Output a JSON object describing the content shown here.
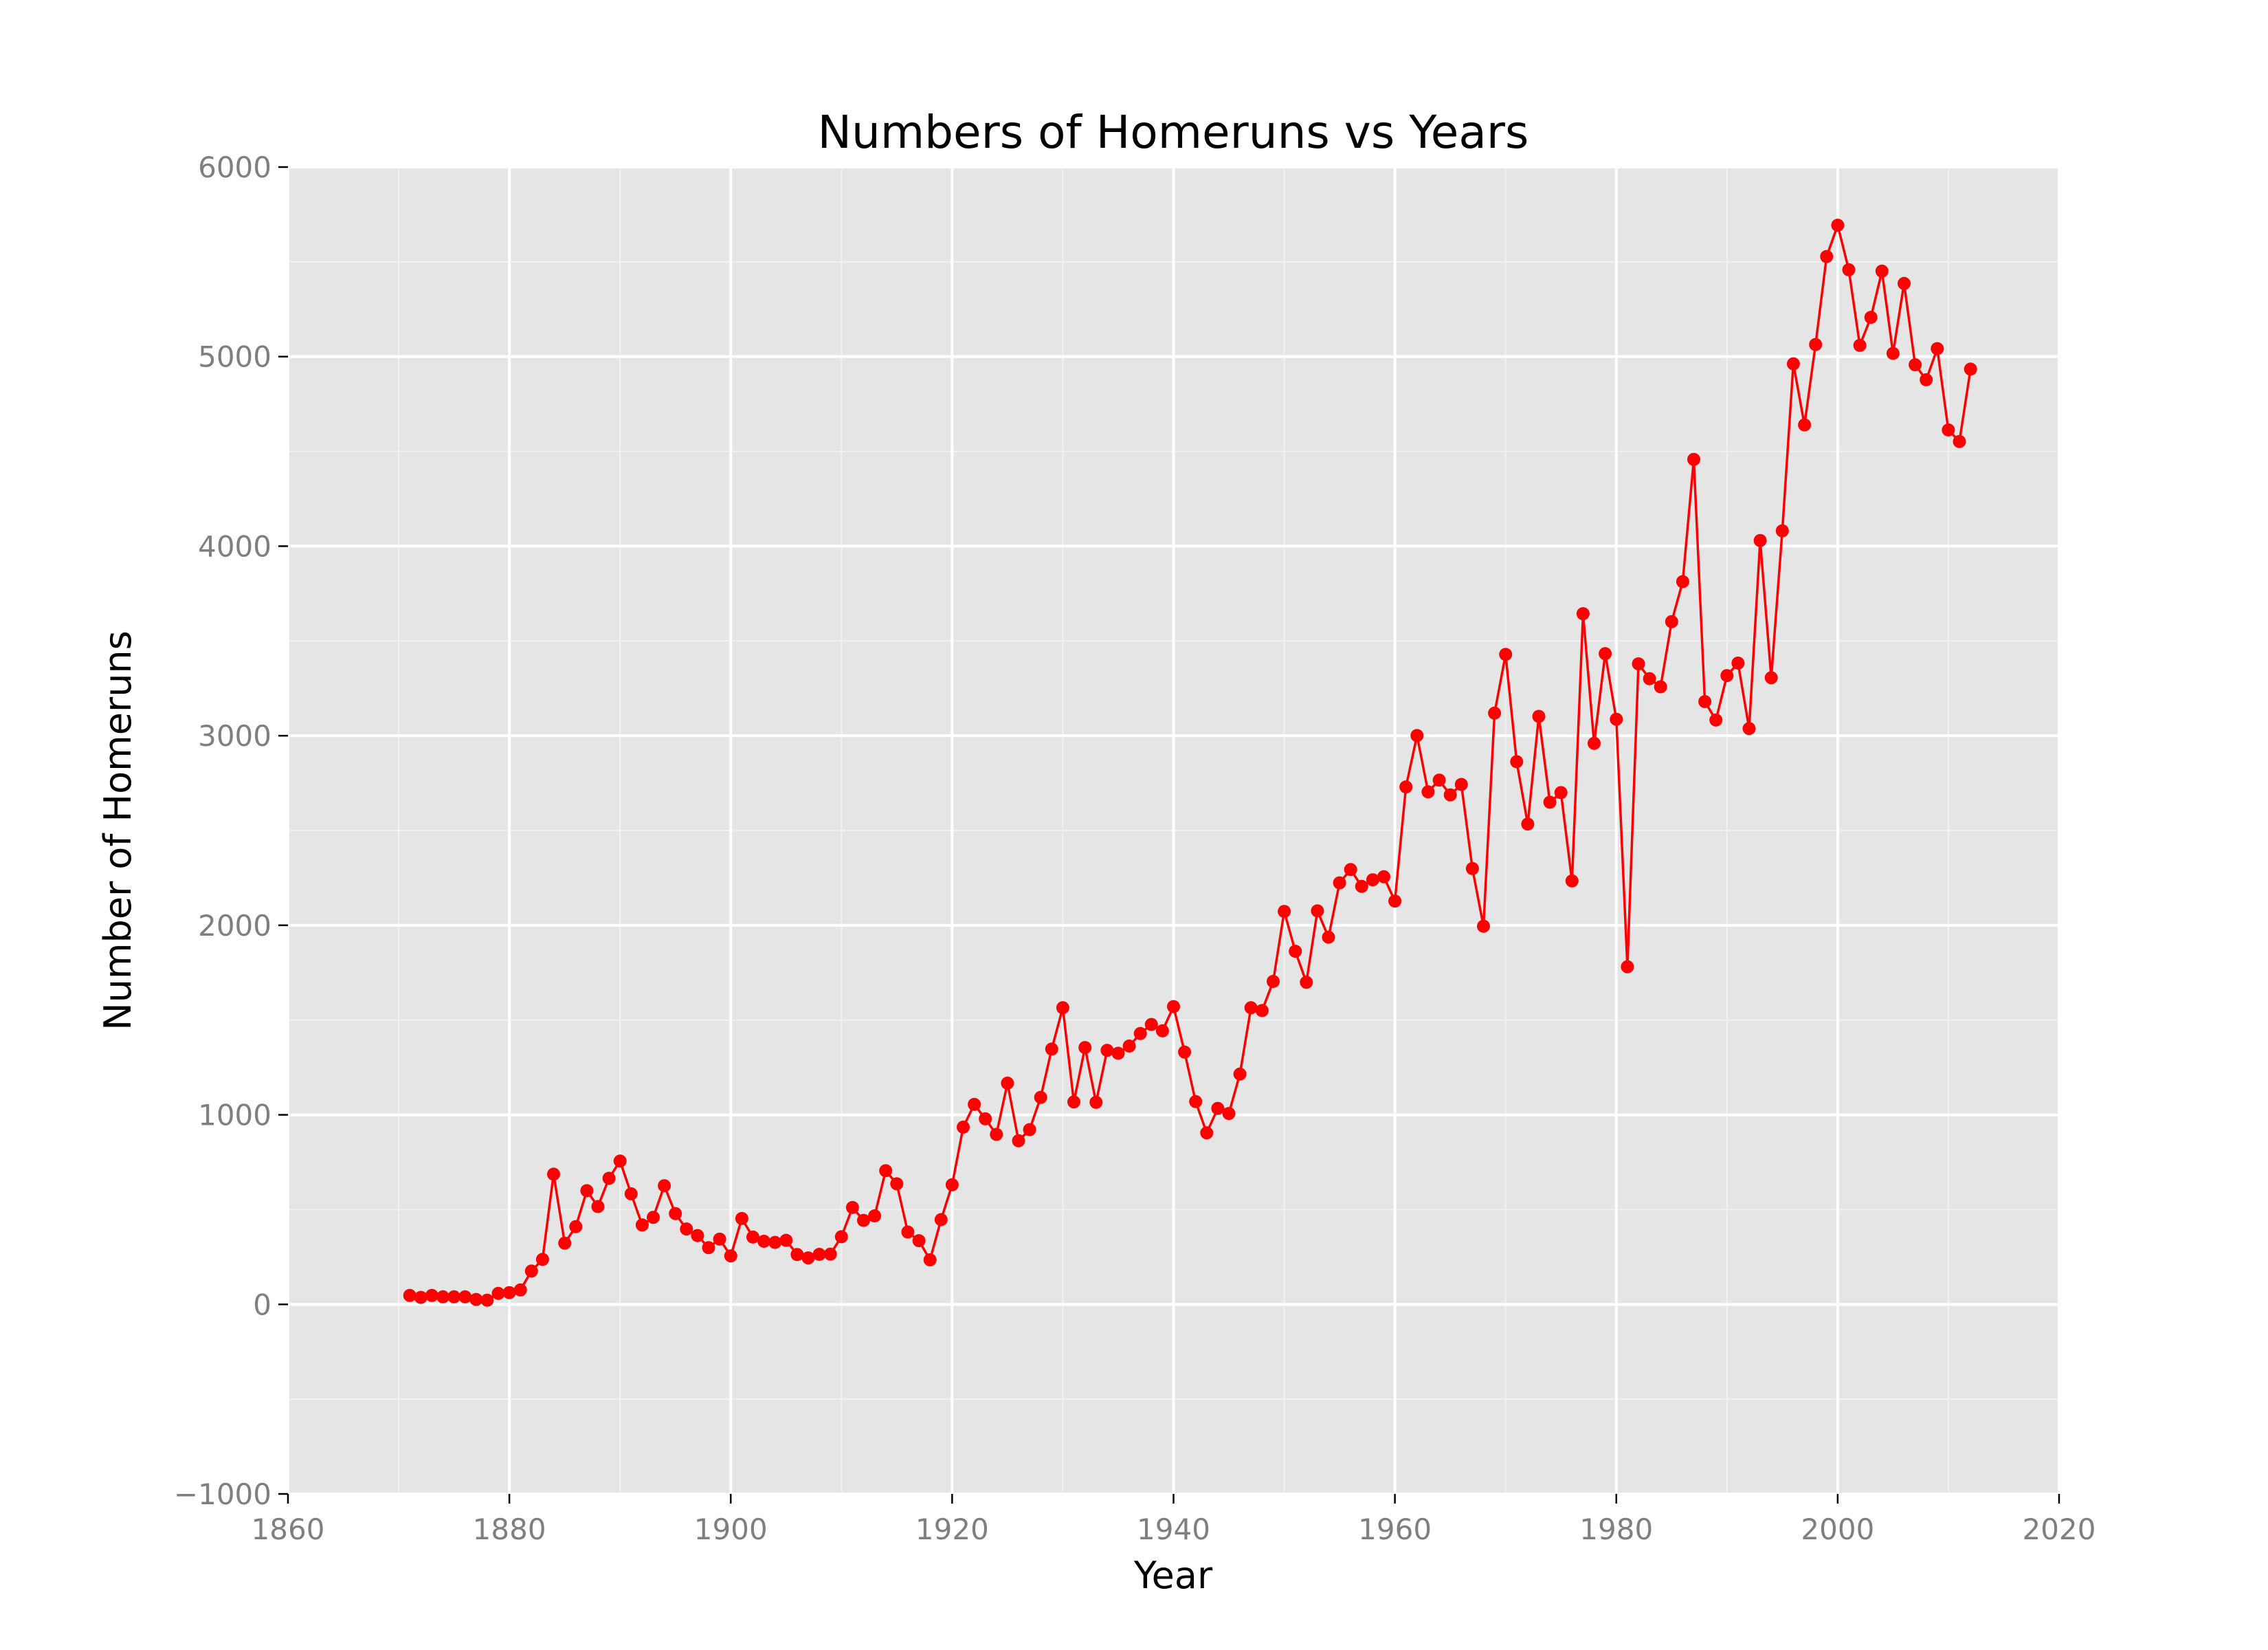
{
  "chart_data": {
    "type": "line",
    "title": "Numbers of Homeruns vs Years",
    "xlabel": "Year",
    "ylabel": "Number of Homeruns",
    "xlim": [
      1860,
      2020
    ],
    "ylim": [
      -1000,
      6000
    ],
    "xticks": [
      "1860",
      "1880",
      "1900",
      "1920",
      "1940",
      "1960",
      "1980",
      "2000",
      "2020"
    ],
    "yticks": [
      "−1000",
      "0",
      "1000",
      "2000",
      "3000",
      "4000",
      "5000",
      "6000"
    ],
    "grid": true,
    "legend": "none",
    "colors": {
      "series": "#ff0000",
      "panel": "#e5e5e5",
      "grid_major": "#ffffff",
      "grid_minor": "#f2f2f2"
    },
    "series": [
      {
        "x": [
          1871,
          1872,
          1873,
          1874,
          1875,
          1876,
          1877,
          1878,
          1879,
          1880,
          1881,
          1882,
          1883,
          1884,
          1885,
          1886,
          1887,
          1888,
          1889,
          1890,
          1891,
          1892,
          1893,
          1894,
          1895,
          1896,
          1897,
          1898,
          1899,
          1900,
          1901,
          1902,
          1903,
          1904,
          1905,
          1906,
          1907,
          1908,
          1909,
          1910,
          1911,
          1912,
          1913,
          1914,
          1915,
          1916,
          1917,
          1918,
          1919,
          1920,
          1921,
          1922,
          1923,
          1924,
          1925,
          1926,
          1927,
          1928,
          1929,
          1930,
          1931,
          1932,
          1933,
          1934,
          1935,
          1936,
          1937,
          1938,
          1939,
          1940,
          1941,
          1942,
          1943,
          1944,
          1945,
          1946,
          1947,
          1948,
          1949,
          1950,
          1951,
          1952,
          1953,
          1954,
          1955,
          1956,
          1957,
          1958,
          1959,
          1960,
          1961,
          1962,
          1963,
          1964,
          1965,
          1966,
          1967,
          1968,
          1969,
          1970,
          1971,
          1972,
          1973,
          1974,
          1975,
          1976,
          1977,
          1978,
          1979,
          1980,
          1981,
          1982,
          1983,
          1984,
          1985,
          1986,
          1987,
          1988,
          1989,
          1990,
          1991,
          1992,
          1993,
          1994,
          1995,
          1996,
          1997,
          1998,
          1999,
          2000,
          2001,
          2002,
          2003,
          2004,
          2005,
          2006,
          2007,
          2008,
          2009,
          2010,
          2011,
          2012
        ],
        "y": [
          47,
          37,
          47,
          40,
          40,
          40,
          26,
          22,
          58,
          62,
          76,
          176,
          237,
          687,
          323,
          410,
          600,
          516,
          665,
          756,
          583,
          419,
          459,
          626,
          479,
          398,
          363,
          299,
          344,
          256,
          453,
          355,
          333,
          327,
          338,
          263,
          245,
          264,
          265,
          357,
          511,
          443,
          467,
          705,
          636,
          382,
          336,
          235,
          447,
          631,
          935,
          1055,
          979,
          897,
          1167,
          863,
          922,
          1092,
          1347,
          1565,
          1068,
          1355,
          1066,
          1340,
          1325,
          1363,
          1429,
          1477,
          1443,
          1571,
          1331,
          1070,
          905,
          1034,
          1007,
          1215,
          1565,
          1550,
          1704,
          2073,
          1863,
          1699,
          2076,
          1937,
          2224,
          2294,
          2205,
          2240,
          2256,
          2128,
          2730,
          3001,
          2704,
          2766,
          2688,
          2743,
          2299,
          1995,
          3119,
          3429,
          2863,
          2534,
          3102,
          2649,
          2700,
          2234,
          3644,
          2960,
          3433,
          3087,
          1781,
          3379,
          3301,
          3258,
          3602,
          3813,
          4458,
          3180,
          3083,
          3317,
          3383,
          3038,
          4030,
          3306,
          4081,
          4962,
          4640,
          5064,
          5528,
          5693,
          5458,
          5059,
          5207,
          5451,
          5017,
          5386,
          4957,
          4878,
          5042,
          4613,
          4552,
          4934
        ]
      }
    ]
  }
}
